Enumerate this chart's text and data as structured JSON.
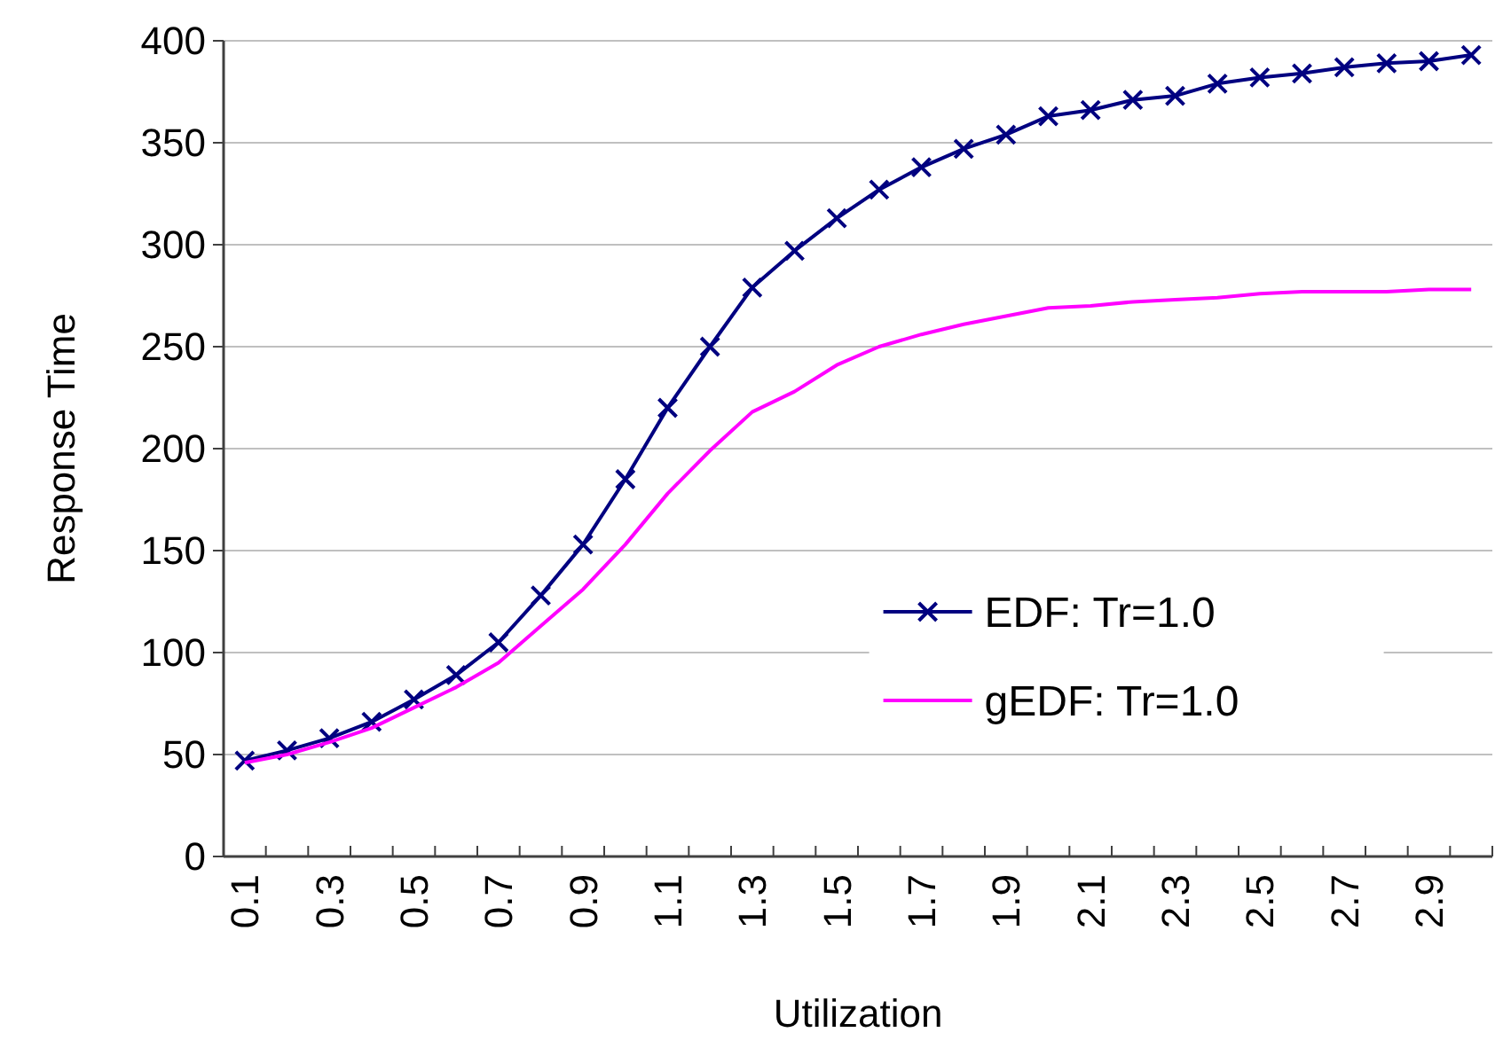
{
  "chart_data": {
    "type": "line",
    "xlabel": "Utilization",
    "ylabel": "Response Time",
    "categories": [
      "0.1",
      null,
      "0.3",
      null,
      "0.5",
      null,
      "0.7",
      null,
      "0.9",
      null,
      "1.1",
      null,
      "1.3",
      null,
      "1.5",
      null,
      "1.7",
      null,
      "1.9",
      null,
      "2.1",
      null,
      "2.3",
      null,
      "2.5",
      null,
      "2.7",
      null,
      "2.9",
      null
    ],
    "ylim": [
      0,
      400
    ],
    "yticks": [
      0,
      50,
      100,
      150,
      200,
      250,
      300,
      350,
      400
    ],
    "grid": "y",
    "legend": "right",
    "series": [
      {
        "name": "EDF: Tr=1.0",
        "color": "#000080",
        "marker": "cross",
        "values": [
          47,
          52,
          58,
          66,
          77,
          89,
          105,
          128,
          153,
          185,
          220,
          250,
          279,
          297,
          313,
          327,
          338,
          347,
          354,
          363,
          366,
          371,
          373,
          379,
          382,
          384,
          387,
          389,
          390,
          393
        ]
      },
      {
        "name": "gEDF: Tr=1.0",
        "color": "#ff00ff",
        "marker": "none",
        "values": [
          46,
          50,
          56,
          63,
          73,
          83,
          95,
          113,
          131,
          153,
          178,
          199,
          218,
          228,
          241,
          250,
          256,
          261,
          265,
          269,
          270,
          272,
          273,
          274,
          276,
          277,
          277,
          277,
          278,
          278
        ]
      }
    ]
  }
}
